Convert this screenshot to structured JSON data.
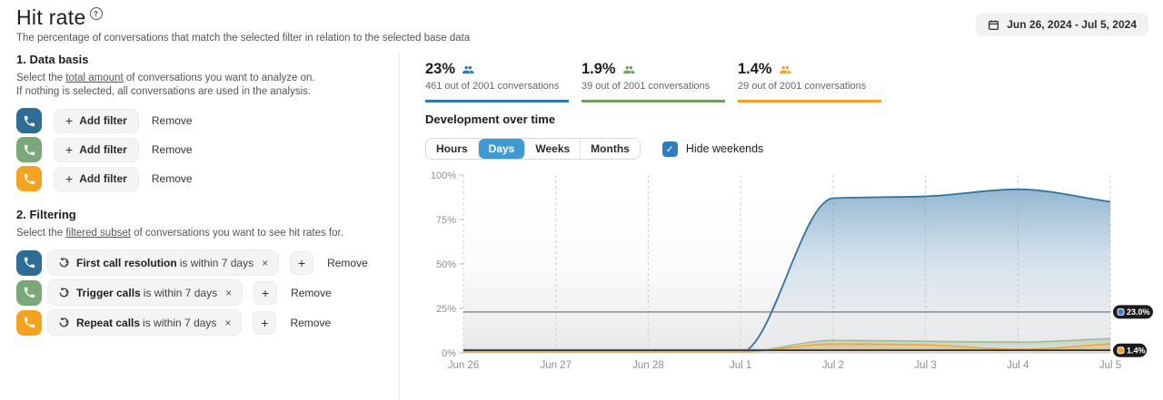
{
  "icons": {
    "plus": "+",
    "close": "×",
    "check": "✓",
    "info": "?"
  },
  "header": {
    "title": "Hit rate",
    "subtitle": "The percentage of conversations that match the selected filter in relation to the selected base data",
    "date_range": "Jun 26, 2024 - Jul 5, 2024"
  },
  "data_basis": {
    "heading": "1. Data basis",
    "desc_pre": "Select the ",
    "desc_link": "total amount",
    "desc_post": " of conversations you want to analyze on.",
    "desc_line2": "If nothing is selected, all conversations are used in the analysis.",
    "rows": [
      {
        "color": "#2e6e96",
        "add_label": "Add filter",
        "remove_label": "Remove"
      },
      {
        "color": "#7aa879",
        "add_label": "Add filter",
        "remove_label": "Remove"
      },
      {
        "color": "#f5a31f",
        "add_label": "Add filter",
        "remove_label": "Remove"
      }
    ]
  },
  "filtering": {
    "heading": "2. Filtering",
    "desc_pre": "Select the ",
    "desc_link": "filtered subset",
    "desc_post": " of conversations you want to see hit rates for.",
    "rows": [
      {
        "color": "#2e6e96",
        "filter_name": "First call resolution",
        "filter_condition": "is within 7 days",
        "remove_label": "Remove"
      },
      {
        "color": "#7aa879",
        "filter_name": "Trigger calls",
        "filter_condition": "is within 7 days",
        "remove_label": "Remove"
      },
      {
        "color": "#f5a31f",
        "filter_name": "Repeat calls",
        "filter_condition": "is within 7 days",
        "remove_label": "Remove"
      }
    ]
  },
  "stats": [
    {
      "value": "23%",
      "sub": "461 out of 2001 conversations",
      "color": "#2e76ab"
    },
    {
      "value": "1.9%",
      "sub": "39 out of 2001 conversations",
      "color": "#6fa05f"
    },
    {
      "value": "1.4%",
      "sub": "29 out of 2001 conversations",
      "color": "#f0a229"
    }
  ],
  "development": {
    "heading": "Development over time",
    "tabs": [
      "Hours",
      "Days",
      "Weeks",
      "Months"
    ],
    "active_tab": "Days",
    "hide_weekends_label": "Hide weekends",
    "hide_weekends_checked": true
  },
  "chart_data": {
    "type": "area",
    "title": "Development over time",
    "x": [
      "Jun 26",
      "Jun 27",
      "Jun 28",
      "Jul 1",
      "Jul 2",
      "Jul 3",
      "Jul 4",
      "Jul 5"
    ],
    "series": [
      {
        "name": "hit-rate-blue",
        "stroke": "#33719f",
        "fill": "#6d9cbe",
        "values": [
          0.2,
          0.2,
          0.2,
          0.3,
          87,
          88,
          92,
          85
        ]
      },
      {
        "name": "hit-rate-green",
        "stroke": "#9dbd94",
        "fill": "#91b487",
        "values": [
          0.2,
          0.2,
          0.2,
          0.4,
          7,
          6.5,
          6,
          8
        ]
      },
      {
        "name": "hit-rate-orange",
        "stroke": "#f2a63a",
        "fill": "#f3a631",
        "values": [
          0.6,
          0.6,
          0.6,
          0.6,
          5,
          4.5,
          2,
          5
        ]
      }
    ],
    "reference_lines": [
      {
        "value": 23.0,
        "label": "23.0%",
        "color": "#3d85c6",
        "line_color": "#6e6e6e",
        "show_badge": true
      },
      {
        "value": 1.9,
        "label": "1.9%",
        "color": "#6fa05f",
        "line_color": "#8f8f8f",
        "show_badge": false
      },
      {
        "value": 1.4,
        "label": "1.4%",
        "color": "#f0a229",
        "line_color": "#2f2f2f",
        "show_badge": true
      }
    ],
    "ylim": [
      0,
      100
    ],
    "yticks": [
      0,
      25,
      50,
      75,
      100
    ],
    "ytick_labels": [
      "0%",
      "25%",
      "50%",
      "75%",
      "100%"
    ],
    "grid": "vertical-dashed",
    "legend": "none"
  }
}
